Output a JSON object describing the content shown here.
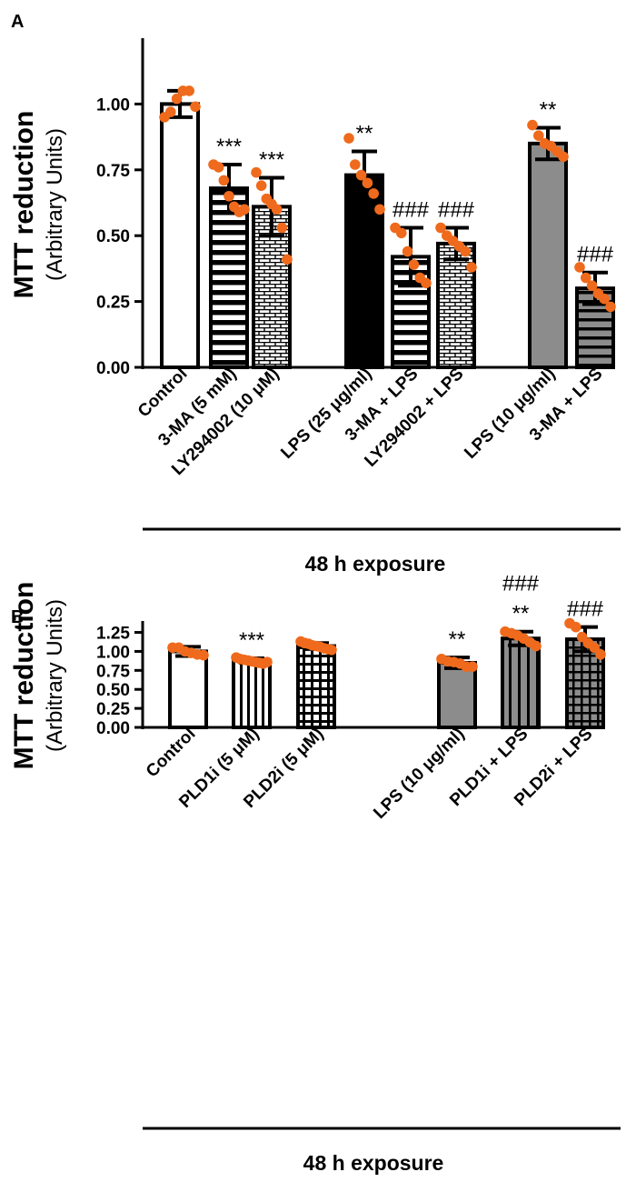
{
  "chart_data": [
    {
      "type": "bar",
      "panel_label": "A",
      "title": "",
      "ylabel": "MTT reduction",
      "ylabel_sub": "(Arbitrary Units)",
      "xlabel": "48 h exposure",
      "ylim": [
        0,
        1.25
      ],
      "yticks": [
        "0.00",
        "0.25",
        "0.50",
        "0.75",
        "1.00"
      ],
      "tick_values": [
        0,
        0.25,
        0.5,
        0.75,
        1.0
      ],
      "bars": [
        {
          "label": "Control",
          "mean": 1.0,
          "err": 0.05,
          "fill": "white",
          "sig": "",
          "points": [
            0.95,
            0.97,
            1.02,
            1.05,
            1.05,
            0.99
          ]
        },
        {
          "label": "3-MA (5 mM)",
          "mean": 0.68,
          "err": 0.09,
          "fill": "hlines",
          "sig": "***",
          "points": [
            0.77,
            0.76,
            0.71,
            0.65,
            0.61,
            0.59,
            0.6
          ]
        },
        {
          "label": "LY294002 (10 μM)",
          "mean": 0.61,
          "err": 0.11,
          "fill": "brick",
          "sig": "***",
          "points": [
            0.74,
            0.69,
            0.64,
            0.62,
            0.6,
            0.53,
            0.41
          ]
        },
        {
          "label": "LPS (25 μg/ml)",
          "mean": 0.73,
          "err": 0.09,
          "fill": "black",
          "sig": "**",
          "points": [
            0.87,
            0.77,
            0.73,
            0.7,
            0.66,
            0.6
          ]
        },
        {
          "label": "3-MA + LPS",
          "mean": 0.42,
          "err": 0.11,
          "fill": "hlines",
          "sig": "###",
          "points": [
            0.53,
            0.51,
            0.44,
            0.39,
            0.34,
            0.32
          ]
        },
        {
          "label": "LY294002 + LPS",
          "mean": 0.47,
          "err": 0.06,
          "fill": "brick",
          "sig": "###",
          "points": [
            0.53,
            0.5,
            0.48,
            0.46,
            0.44,
            0.38
          ]
        },
        {
          "label": "LPS (10 μg/ml)",
          "mean": 0.85,
          "err": 0.06,
          "fill": "gray",
          "sig": "**",
          "points": [
            0.92,
            0.88,
            0.85,
            0.84,
            0.82,
            0.8
          ]
        },
        {
          "label": "3-MA + LPS",
          "mean": 0.3,
          "err": 0.06,
          "fill": "gray-hlines",
          "sig": "###",
          "points": [
            0.38,
            0.34,
            0.31,
            0.28,
            0.26,
            0.23
          ]
        }
      ]
    },
    {
      "type": "bar",
      "panel_label": "B",
      "title": "",
      "ylabel": "MTT reduction",
      "ylabel_sub": "(Arbitrary Units)",
      "xlabel": "48 h exposure",
      "ylim": [
        0,
        1.4
      ],
      "yticks": [
        "0.00",
        "0.25",
        "0.50",
        "0.75",
        "1.00",
        "1.25"
      ],
      "tick_values": [
        0,
        0.25,
        0.5,
        0.75,
        1.0,
        1.25
      ],
      "bars": [
        {
          "label": "Control",
          "mean": 1.0,
          "err": 0.06,
          "fill": "white",
          "sig": "",
          "points": [
            1.05,
            1.05,
            1.0,
            0.98,
            0.96,
            0.95
          ]
        },
        {
          "label": "PLD1i  (5 μM)",
          "mean": 0.88,
          "err": 0.03,
          "fill": "vlines",
          "sig": "***",
          "points": [
            0.92,
            0.9,
            0.89,
            0.88,
            0.87,
            0.86,
            0.85,
            0.84,
            0.86
          ]
        },
        {
          "label": "PLD2i  (5 μM)",
          "mean": 1.07,
          "err": 0.04,
          "fill": "grid",
          "sig": "",
          "points": [
            1.13,
            1.11,
            1.1,
            1.08,
            1.07,
            1.06,
            1.04,
            1.03,
            1.02
          ]
        },
        {
          "label": "LPS (10 μg/ml)",
          "mean": 0.85,
          "err": 0.07,
          "fill": "gray",
          "sig": "**",
          "points": [
            0.9,
            0.87,
            0.86,
            0.84,
            0.8,
            0.8
          ]
        },
        {
          "label": "PLD1i + LPS",
          "mean": 1.17,
          "err": 0.09,
          "fill": "gray-vlines",
          "sig": "**",
          "sig2": "###",
          "points": [
            1.26,
            1.24,
            1.21,
            1.17,
            1.12,
            1.07
          ]
        },
        {
          "label": "PLD2i + LPS",
          "mean": 1.16,
          "err": 0.16,
          "fill": "gray-grid",
          "sig": "###",
          "points": [
            1.37,
            1.32,
            1.19,
            1.11,
            1.05,
            0.96
          ]
        }
      ]
    }
  ]
}
